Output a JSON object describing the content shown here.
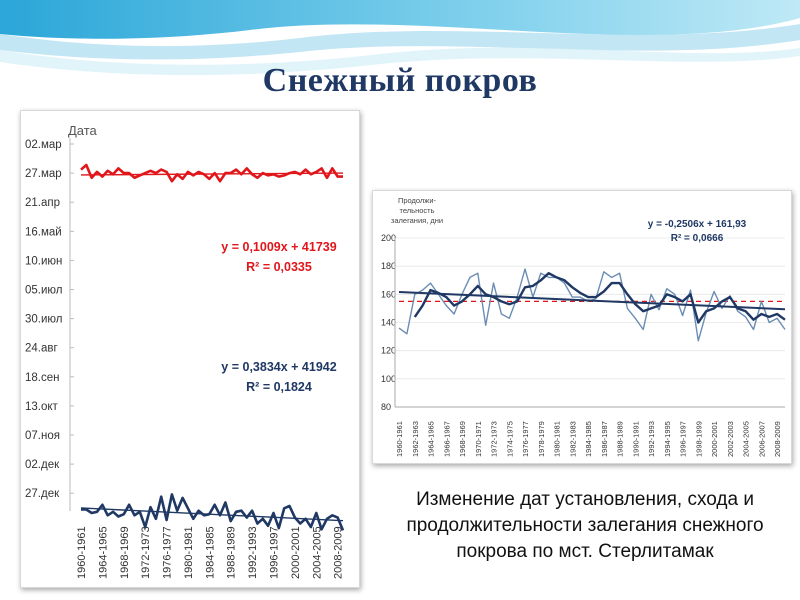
{
  "slide": {
    "title": "Снежный покров",
    "caption": "Изменение дат установления, схода и продолжительности залегания снежного покрова по мст. Стерлитамак"
  },
  "chart_data": [
    {
      "type": "line",
      "ylabel": "Дата",
      "y_tick_labels": [
        "02.мар",
        "27.мар",
        "21.апр",
        "16.май",
        "10.июн",
        "05.июл",
        "30.июл",
        "24.авг",
        "18.сен",
        "13.окт",
        "07.ноя",
        "02.дек",
        "27.дек"
      ],
      "x_tick_labels": [
        "1960-1961",
        "1964-1965",
        "1968-1969",
        "1972-1973",
        "1976-1977",
        "1980-1981",
        "1984-1985",
        "1988-1989",
        "1992-1993",
        "1996-1997",
        "2000-2001",
        "2004-2005",
        "2008-2009"
      ],
      "x_start": 1960,
      "x_end": 2009,
      "y_invert": true,
      "series": [
        {
          "role": "snow-melt",
          "color": "#e0161b",
          "values": [
            23,
            19,
            30,
            25,
            29,
            24,
            27,
            22,
            26,
            26,
            30,
            28,
            26,
            24,
            26,
            23,
            25,
            33,
            27,
            31,
            25,
            28,
            25,
            27,
            31,
            26,
            33,
            26,
            26,
            23,
            27,
            22,
            27,
            30,
            26,
            28,
            27,
            29,
            28,
            26,
            25,
            27,
            23,
            27,
            25,
            22,
            30,
            22,
            29,
            29
          ],
          "trend_start": 27.6,
          "trend_end": 26.0,
          "equation": "y = 0,1009x + 41739",
          "r2": "R² = 0,0335"
        },
        {
          "role": "snow-cover-onset",
          "color": "#1f3864",
          "values": [
            315,
            315,
            318,
            317,
            311,
            320,
            317,
            321,
            319,
            311,
            320,
            317,
            330,
            313,
            323,
            304,
            324,
            302,
            316,
            305,
            314,
            323,
            316,
            320,
            319,
            311,
            320,
            309,
            325,
            317,
            316,
            322,
            316,
            327,
            323,
            329,
            318,
            331,
            314,
            312,
            322,
            327,
            323,
            330,
            318,
            332,
            323,
            320,
            322,
            333
          ],
          "trend_start": 313.7,
          "trend_end": 324.6,
          "equation": "y = 0,3834x + 41942",
          "r2": "R² = 0,1824"
        }
      ]
    },
    {
      "type": "line",
      "ylabel": "Продолжи-\nтельность\nзалегания, дни",
      "yticks": [
        "200",
        "180",
        "160",
        "140",
        "120",
        "100",
        "80"
      ],
      "ylim": [
        80,
        200
      ],
      "x_tick_labels": [
        "1960-1961",
        "1962-1963",
        "1964-1965",
        "1966-1967",
        "1968-1969",
        "1970-1971",
        "1972-1973",
        "1974-1975",
        "1976-1977",
        "1978-1979",
        "1980-1981",
        "1982-1983",
        "1984-1985",
        "1986-1987",
        "1988-1989",
        "1990-1991",
        "1992-1993",
        "1994-1995",
        "1996-1997",
        "1998-1999",
        "2000-2001",
        "2002-2003",
        "2004-2005",
        "2006-2007",
        "2008-2009"
      ],
      "series": [
        {
          "role": "duration",
          "color": "#6b8db4",
          "values": [
            136,
            132,
            160,
            163,
            168,
            160,
            152,
            146,
            160,
            172,
            175,
            138,
            168,
            146,
            143,
            158,
            178,
            158,
            175,
            172,
            172,
            168,
            158,
            158,
            155,
            157,
            176,
            172,
            175,
            150,
            143,
            135,
            160,
            149,
            164,
            160,
            145,
            163,
            127,
            147,
            162,
            150,
            159,
            148,
            144,
            135,
            155,
            140,
            143,
            135
          ]
        },
        {
          "role": "duration-smoothed",
          "color": "#1f3864",
          "values": [
            null,
            null,
            144,
            152,
            163,
            161,
            158,
            152,
            155,
            160,
            166,
            160,
            158,
            155,
            153,
            155,
            165,
            166,
            170,
            175,
            172,
            170,
            165,
            161,
            158,
            158,
            162,
            168,
            168,
            160,
            153,
            148,
            150,
            152,
            160,
            158,
            155,
            160,
            140,
            148,
            150,
            155,
            158,
            150,
            148,
            142,
            146,
            144,
            146,
            142
          ]
        }
      ],
      "mean_value": 155,
      "mean_color": "#e0161b",
      "trend_start": 161.7,
      "trend_end": 149.4,
      "trend_color": "#1f3864",
      "equation": "y = -0,2506x + 161,93",
      "r2": "R² = 0,0666"
    }
  ]
}
